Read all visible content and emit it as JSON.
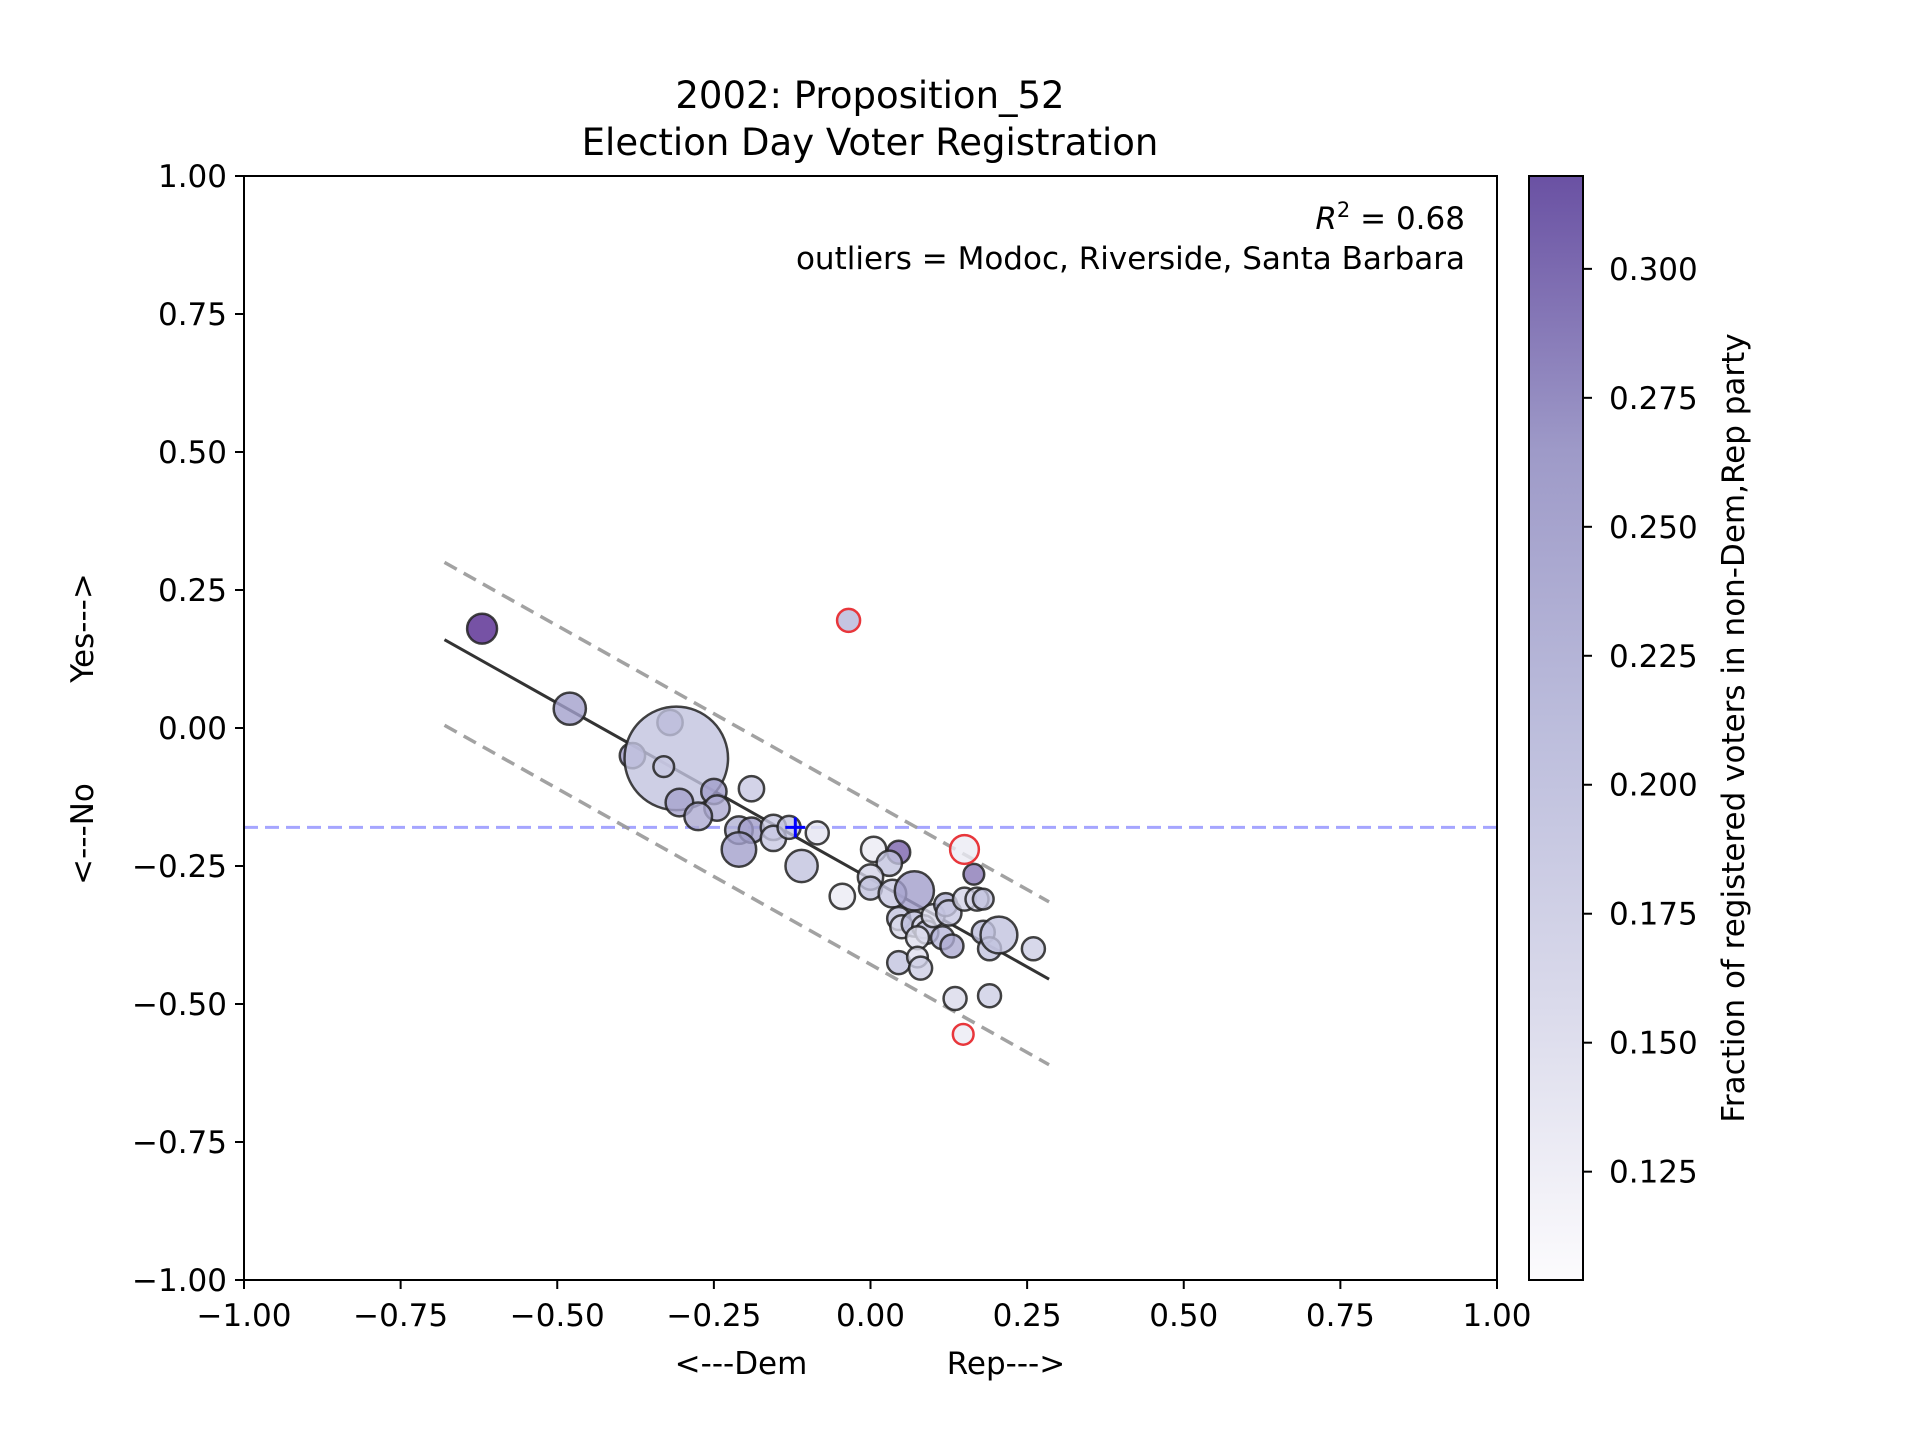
{
  "chart_data": {
    "type": "scatter",
    "title_line1": "2002: Proposition_52",
    "title_line2": "Election Day Voter Registration",
    "xlabel_left": "<---Dem",
    "xlabel_right": "Rep--->",
    "ylabel_bottom": "<---No",
    "ylabel_top": "Yes--->",
    "xlim": [
      -1.0,
      1.0
    ],
    "ylim": [
      -1.0,
      1.0
    ],
    "xticks": [
      -1.0,
      -0.75,
      -0.5,
      -0.25,
      0.0,
      0.25,
      0.5,
      0.75,
      1.0
    ],
    "yticks": [
      -1.0,
      -0.75,
      -0.5,
      -0.25,
      0.0,
      0.25,
      0.5,
      0.75,
      1.0
    ],
    "xtick_labels": [
      "−1.00",
      "−0.75",
      "−0.50",
      "−0.25",
      "0.00",
      "0.25",
      "0.50",
      "0.75",
      "1.00"
    ],
    "ytick_labels": [
      "−1.00",
      "−0.75",
      "−0.50",
      "−0.25",
      "0.00",
      "0.25",
      "0.50",
      "0.75",
      "1.00"
    ],
    "annotation_r2_label": "R",
    "annotation_r2_sup": "2",
    "annotation_r2_value": " = 0.68",
    "annotation_outliers": "outliers = Modoc, Riverside, Santa Barbara",
    "colorbar": {
      "label": "Fraction of registered voters in non-Dem,Rep party",
      "range": [
        0.104,
        0.318
      ],
      "ticks": [
        0.125,
        0.15,
        0.175,
        0.2,
        0.225,
        0.25,
        0.275,
        0.3
      ],
      "tick_labels": [
        "0.125",
        "0.150",
        "0.175",
        "0.200",
        "0.225",
        "0.250",
        "0.275",
        "0.300"
      ],
      "color_low": "#fcfbfd",
      "color_high": "#54278f"
    },
    "reference_line": {
      "y": -0.18,
      "color": "#8080ff",
      "style": "dashed"
    },
    "mean_marker": {
      "x": -0.12,
      "y": -0.18,
      "color": "#0000ff"
    },
    "regression_line": {
      "x": [
        -0.68,
        0.285
      ],
      "y": [
        0.16,
        -0.455
      ],
      "color": "#333333"
    },
    "prediction_band_upper": {
      "x": [
        -0.68,
        0.285
      ],
      "y": [
        0.3,
        -0.315
      ],
      "color": "#999999"
    },
    "prediction_band_lower": {
      "x": [
        -0.68,
        0.285
      ],
      "y": [
        0.005,
        -0.61
      ],
      "color": "#999999"
    },
    "points": [
      {
        "x": -0.62,
        "y": 0.18,
        "s": 1.3,
        "c": 0.318
      },
      {
        "x": -0.48,
        "y": 0.035,
        "s": 1.4,
        "c": 0.255
      },
      {
        "x": -0.32,
        "y": 0.01,
        "s": 1.1,
        "c": 0.25
      },
      {
        "x": -0.38,
        "y": -0.05,
        "s": 1.1,
        "c": 0.26
      },
      {
        "x": -0.31,
        "y": -0.055,
        "s": 4.5,
        "c": 0.2
      },
      {
        "x": -0.33,
        "y": -0.07,
        "s": 0.9,
        "c": 0.19
      },
      {
        "x": -0.25,
        "y": -0.115,
        "s": 1.1,
        "c": 0.26
      },
      {
        "x": -0.305,
        "y": -0.135,
        "s": 1.2,
        "c": 0.25
      },
      {
        "x": -0.245,
        "y": -0.145,
        "s": 1.1,
        "c": 0.24
      },
      {
        "x": -0.275,
        "y": -0.16,
        "s": 1.2,
        "c": 0.24
      },
      {
        "x": -0.19,
        "y": -0.11,
        "s": 1.1,
        "c": 0.19
      },
      {
        "x": -0.21,
        "y": -0.185,
        "s": 1.2,
        "c": 0.23
      },
      {
        "x": -0.19,
        "y": -0.185,
        "s": 1.1,
        "c": 0.26
      },
      {
        "x": -0.155,
        "y": -0.18,
        "s": 1.1,
        "c": 0.19
      },
      {
        "x": -0.155,
        "y": -0.2,
        "s": 1.1,
        "c": 0.19
      },
      {
        "x": -0.13,
        "y": -0.18,
        "s": 1.0,
        "c": 0.2
      },
      {
        "x": -0.085,
        "y": -0.19,
        "s": 1.0,
        "c": 0.14
      },
      {
        "x": -0.21,
        "y": -0.22,
        "s": 1.5,
        "c": 0.255
      },
      {
        "x": -0.11,
        "y": -0.25,
        "s": 1.4,
        "c": 0.2
      },
      {
        "x": -0.045,
        "y": -0.305,
        "s": 1.1,
        "c": 0.13
      },
      {
        "x": 0.005,
        "y": -0.22,
        "s": 1.1,
        "c": 0.13
      },
      {
        "x": 0.045,
        "y": -0.225,
        "s": 1.0,
        "c": 0.29
      },
      {
        "x": 0.03,
        "y": -0.245,
        "s": 1.1,
        "c": 0.2
      },
      {
        "x": 0.0,
        "y": -0.27,
        "s": 1.1,
        "c": 0.17
      },
      {
        "x": 0.0,
        "y": -0.29,
        "s": 1.0,
        "c": 0.2
      },
      {
        "x": 0.035,
        "y": -0.3,
        "s": 1.2,
        "c": 0.19
      },
      {
        "x": 0.07,
        "y": -0.295,
        "s": 1.7,
        "c": 0.26
      },
      {
        "x": 0.045,
        "y": -0.345,
        "s": 1.0,
        "c": 0.2
      },
      {
        "x": 0.05,
        "y": -0.36,
        "s": 1.0,
        "c": 0.16
      },
      {
        "x": 0.07,
        "y": -0.355,
        "s": 1.1,
        "c": 0.21
      },
      {
        "x": 0.085,
        "y": -0.36,
        "s": 1.0,
        "c": 0.16
      },
      {
        "x": 0.09,
        "y": -0.37,
        "s": 1.0,
        "c": 0.19
      },
      {
        "x": 0.075,
        "y": -0.38,
        "s": 1.0,
        "c": 0.15
      },
      {
        "x": 0.1,
        "y": -0.34,
        "s": 1.0,
        "c": 0.16
      },
      {
        "x": 0.12,
        "y": -0.32,
        "s": 1.0,
        "c": 0.23
      },
      {
        "x": 0.125,
        "y": -0.335,
        "s": 1.1,
        "c": 0.19
      },
      {
        "x": 0.115,
        "y": -0.38,
        "s": 1.0,
        "c": 0.22
      },
      {
        "x": 0.13,
        "y": -0.395,
        "s": 1.0,
        "c": 0.24
      },
      {
        "x": 0.15,
        "y": -0.31,
        "s": 1.0,
        "c": 0.17
      },
      {
        "x": 0.165,
        "y": -0.265,
        "s": 0.9,
        "c": 0.28
      },
      {
        "x": 0.17,
        "y": -0.31,
        "s": 1.0,
        "c": 0.17
      },
      {
        "x": 0.18,
        "y": -0.31,
        "s": 0.9,
        "c": 0.2
      },
      {
        "x": 0.18,
        "y": -0.37,
        "s": 1.0,
        "c": 0.21
      },
      {
        "x": 0.19,
        "y": -0.4,
        "s": 1.0,
        "c": 0.2
      },
      {
        "x": 0.205,
        "y": -0.375,
        "s": 1.6,
        "c": 0.2
      },
      {
        "x": 0.26,
        "y": -0.4,
        "s": 1.0,
        "c": 0.18
      },
      {
        "x": 0.045,
        "y": -0.425,
        "s": 1.0,
        "c": 0.2
      },
      {
        "x": 0.075,
        "y": -0.415,
        "s": 0.9,
        "c": 0.15
      },
      {
        "x": 0.08,
        "y": -0.435,
        "s": 1.0,
        "c": 0.18
      },
      {
        "x": 0.135,
        "y": -0.49,
        "s": 1.0,
        "c": 0.16
      },
      {
        "x": 0.19,
        "y": -0.485,
        "s": 1.0,
        "c": 0.18
      }
    ],
    "outlier_points": [
      {
        "x": -0.035,
        "y": 0.195,
        "s": 1.0,
        "c": 0.22,
        "edge": "#e8363b"
      },
      {
        "x": 0.15,
        "y": -0.22,
        "s": 1.25,
        "c": 0.13,
        "edge": "#e8363b"
      },
      {
        "x": 0.148,
        "y": -0.555,
        "s": 0.9,
        "c": 0.13,
        "edge": "#e8363b"
      }
    ],
    "axes_box": {
      "bottom_frame": "#000000"
    }
  }
}
